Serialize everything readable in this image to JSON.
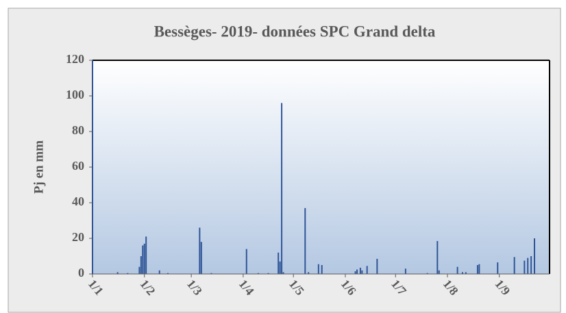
{
  "chart_data": {
    "type": "bar",
    "title": "Bessèges- 2019- données SPC Grand delta",
    "ylabel": "Pj en mm",
    "x": [
      16,
      22,
      29,
      30,
      31,
      32,
      33,
      41,
      46,
      65,
      66,
      72,
      93,
      100,
      106,
      112,
      113,
      114,
      115,
      128,
      130,
      136,
      138,
      158,
      159,
      161,
      162,
      165,
      171,
      188,
      201,
      207,
      208,
      219,
      222,
      224,
      231,
      232,
      243,
      253,
      259,
      261,
      263,
      265
    ],
    "values": [
      1,
      0.5,
      4,
      10,
      16,
      17,
      21,
      2,
      0.5,
      26,
      18,
      0.5,
      14,
      0.5,
      0.5,
      12,
      7,
      96,
      1,
      37,
      1,
      5.5,
      5,
      1.5,
      2.5,
      3.5,
      2,
      4.5,
      8.5,
      3,
      0.5,
      18.5,
      2,
      4,
      1,
      1,
      5,
      5.5,
      6.5,
      9.5,
      7.5,
      9,
      10,
      20
    ],
    "color": "#2f5597",
    "xlim": [
      1,
      274
    ],
    "xticks": [
      {
        "value": 1,
        "label": "1/1"
      },
      {
        "value": 32,
        "label": "1/2"
      },
      {
        "value": 60,
        "label": "1/3"
      },
      {
        "value": 91,
        "label": "1/4"
      },
      {
        "value": 121,
        "label": "1/5"
      },
      {
        "value": 152,
        "label": "1/6"
      },
      {
        "value": 182,
        "label": "1/7"
      },
      {
        "value": 213,
        "label": "1/8"
      },
      {
        "value": 244,
        "label": "1/9"
      }
    ],
    "ylim": [
      0,
      120
    ],
    "yticks": [
      0,
      20,
      40,
      60,
      80,
      100,
      120
    ]
  }
}
